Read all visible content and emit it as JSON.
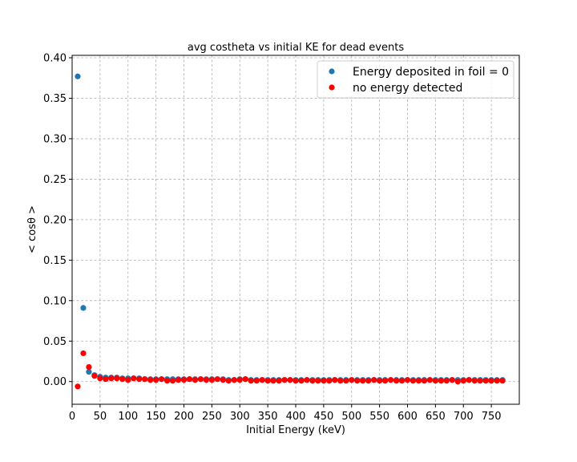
{
  "chart_data": {
    "type": "scatter",
    "title": "avg costheta vs initial KE for dead events",
    "xlabel": "Initial Energy (keV)",
    "ylabel": "< cosθ >",
    "xlim": [
      0,
      800
    ],
    "ylim": [
      -0.028,
      0.403
    ],
    "xticks": [
      0,
      50,
      100,
      150,
      200,
      250,
      300,
      350,
      400,
      450,
      500,
      550,
      600,
      650,
      700,
      750
    ],
    "yticks": [
      0.0,
      0.05,
      0.1,
      0.15,
      0.2,
      0.25,
      0.3,
      0.35,
      0.4
    ],
    "xtick_labels": [
      "0",
      "50",
      "100",
      "150",
      "200",
      "250",
      "300",
      "350",
      "400",
      "450",
      "500",
      "550",
      "600",
      "650",
      "700",
      "750"
    ],
    "ytick_labels": [
      "0.00",
      "0.05",
      "0.10",
      "0.15",
      "0.20",
      "0.25",
      "0.30",
      "0.35",
      "0.40"
    ],
    "grid": true,
    "legend_position": "top-right",
    "series": [
      {
        "name": "Energy deposited in foil = 0",
        "color": "#1f77b4",
        "x": [
          10,
          20,
          30,
          40,
          50,
          60,
          70,
          80,
          90,
          100,
          110,
          120,
          130,
          140,
          150,
          160,
          170,
          180,
          190,
          200,
          210,
          220,
          230,
          240,
          250,
          260,
          270,
          280,
          290,
          300,
          310,
          320,
          330,
          340,
          350,
          360,
          370,
          380,
          390,
          400,
          410,
          420,
          430,
          440,
          450,
          460,
          470,
          480,
          490,
          500,
          510,
          520,
          530,
          540,
          550,
          560,
          570,
          580,
          590,
          600,
          610,
          620,
          630,
          640,
          650,
          660,
          670,
          680,
          690,
          700,
          710,
          720,
          730,
          740,
          750,
          760,
          770
        ],
        "y": [
          0.377,
          0.091,
          0.012,
          0.008,
          0.006,
          0.005,
          0.005,
          0.005,
          0.004,
          0.004,
          0.004,
          0.004,
          0.003,
          0.003,
          0.003,
          0.003,
          0.003,
          0.003,
          0.003,
          0.003,
          0.003,
          0.003,
          0.003,
          0.003,
          0.003,
          0.003,
          0.003,
          0.002,
          0.002,
          0.003,
          0.003,
          0.002,
          0.002,
          0.002,
          0.002,
          0.002,
          0.002,
          0.002,
          0.002,
          0.002,
          0.002,
          0.002,
          0.002,
          0.002,
          0.002,
          0.002,
          0.002,
          0.002,
          0.002,
          0.002,
          0.002,
          0.002,
          0.002,
          0.002,
          0.002,
          0.002,
          0.002,
          0.002,
          0.002,
          0.002,
          0.002,
          0.002,
          0.002,
          0.002,
          0.002,
          0.002,
          0.002,
          0.002,
          0.002,
          0.002,
          0.002,
          0.002,
          0.002,
          0.002,
          0.002,
          0.002,
          0.002
        ]
      },
      {
        "name": "no energy detected",
        "color": "#ff0000",
        "x": [
          10,
          20,
          30,
          40,
          50,
          60,
          70,
          80,
          90,
          100,
          110,
          120,
          130,
          140,
          150,
          160,
          170,
          180,
          190,
          200,
          210,
          220,
          230,
          240,
          250,
          260,
          270,
          280,
          290,
          300,
          310,
          320,
          330,
          340,
          350,
          360,
          370,
          380,
          390,
          400,
          410,
          420,
          430,
          440,
          450,
          460,
          470,
          480,
          490,
          500,
          510,
          520,
          530,
          540,
          550,
          560,
          570,
          580,
          590,
          600,
          610,
          620,
          630,
          640,
          650,
          660,
          670,
          680,
          690,
          700,
          710,
          720,
          730,
          740,
          750,
          760,
          770
        ],
        "y": [
          -0.006,
          0.035,
          0.018,
          0.007,
          0.004,
          0.003,
          0.004,
          0.004,
          0.003,
          0.002,
          0.004,
          0.003,
          0.003,
          0.002,
          0.002,
          0.003,
          0.001,
          0.001,
          0.002,
          0.002,
          0.003,
          0.002,
          0.003,
          0.002,
          0.002,
          0.003,
          0.002,
          0.001,
          0.002,
          0.002,
          0.003,
          0.001,
          0.001,
          0.002,
          0.001,
          0.001,
          0.001,
          0.002,
          0.002,
          0.001,
          0.001,
          0.002,
          0.001,
          0.001,
          0.001,
          0.001,
          0.002,
          0.001,
          0.001,
          0.002,
          0.001,
          0.001,
          0.001,
          0.002,
          0.001,
          0.001,
          0.002,
          0.001,
          0.001,
          0.002,
          0.001,
          0.001,
          0.001,
          0.002,
          0.001,
          0.001,
          0.001,
          0.002,
          0.0,
          0.001,
          0.002,
          0.001,
          0.001,
          0.001,
          0.001,
          0.001,
          0.001
        ]
      }
    ]
  }
}
